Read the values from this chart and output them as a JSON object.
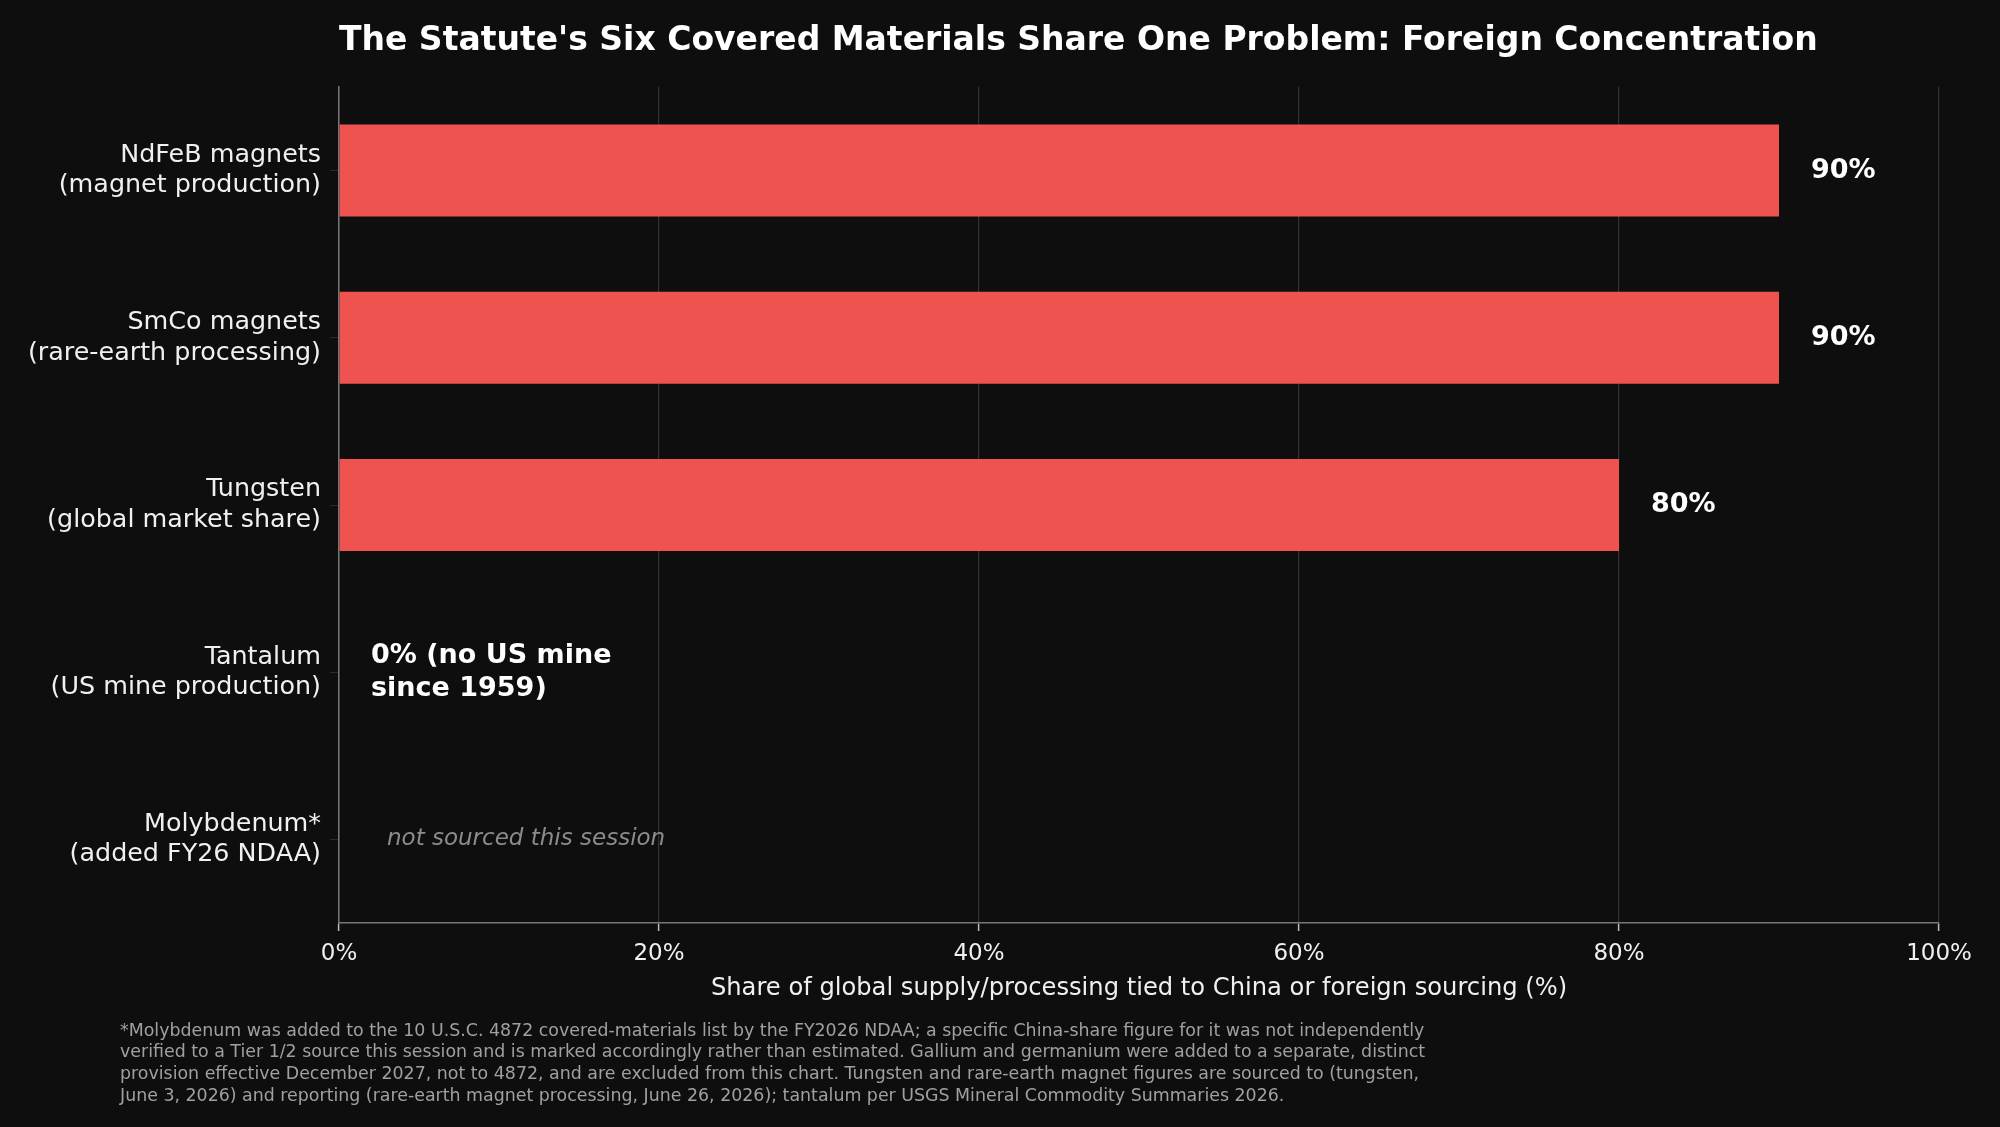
{
  "chart_data": {
    "type": "bar",
    "orientation": "horizontal",
    "title": "The Statute's Six Covered Materials Share One Problem: Foreign Concentration",
    "xlabel": "Share of global supply/processing tied to China or foreign sourcing (%)",
    "categories": [
      "NdFeB magnets\n(magnet production)",
      "SmCo magnets\n(rare-earth processing)",
      "Tungsten\n(global market share)",
      "Tantalum\n(US mine production)",
      "Molybdenum*\n(added FY26 NDAA)"
    ],
    "values": [
      90,
      90,
      80,
      0,
      null
    ],
    "value_labels": [
      "90%",
      "90%",
      "80%",
      "0% (no US mine\nsince 1959)",
      null
    ],
    "color": "#ef5350",
    "xlim": [
      0,
      100
    ],
    "xticks": [
      {
        "value": 0,
        "label": "0%"
      },
      {
        "value": 20,
        "label": "20%"
      },
      {
        "value": 40,
        "label": "40%"
      },
      {
        "value": 60,
        "label": "60%"
      },
      {
        "value": 80,
        "label": "80%"
      },
      {
        "value": 100,
        "label": "100%"
      }
    ],
    "grid": "x",
    "annotations": [
      "not sourced this session",
      "*Molybdenum was added to the 10 U.S.C. 4872 covered-materials list by the FY2026 NDAA; a specific China-share figure for it was not independently\nverified to a Tier 1/2 source this session and is marked accordingly rather than estimated. Gallium and germanium were added to a separate, distinct\nprovision effective December 2027, not to 4872, and are excluded from this chart. Tungsten and rare-earth magnet figures are sourced to (tungsten,\nJune 3, 2026) and reporting (rare-earth magnet processing, June 26, 2026); tantalum per USGS Mineral Commodity Summaries 2026."
    ]
  }
}
